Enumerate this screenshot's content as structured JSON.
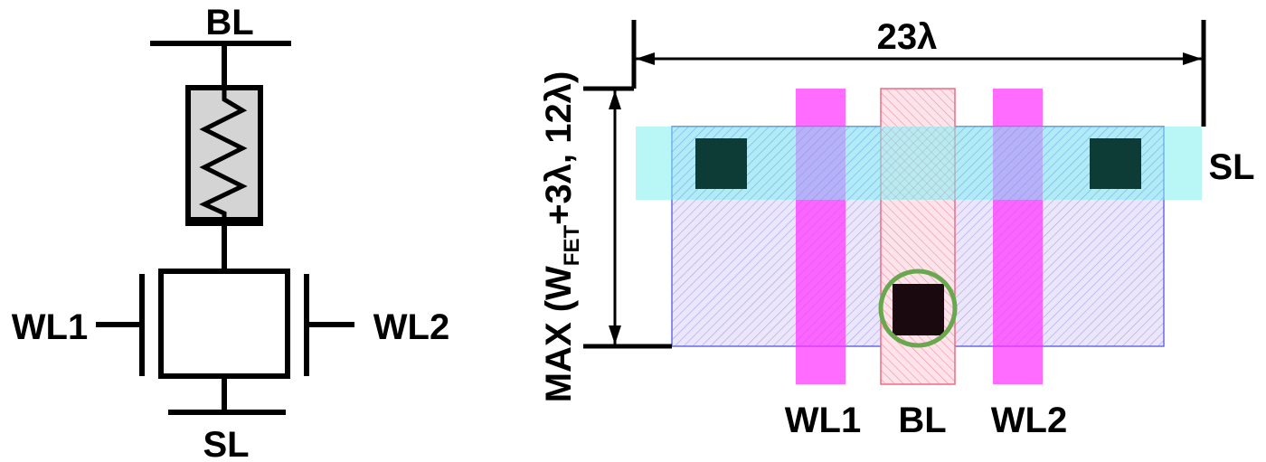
{
  "schematic": {
    "labels": {
      "bl": "BL",
      "sl": "SL",
      "wl1": "WL1",
      "wl2": "WL2"
    }
  },
  "layout": {
    "width_label": "23λ",
    "height_label": {
      "prefix": "MAX (W",
      "subscript": "FET",
      "suffix": "+3λ,  12λ)"
    },
    "labels": {
      "sl": "SL",
      "wl1": "WL1",
      "bl": "BL",
      "wl2": "WL2"
    }
  },
  "colors": {
    "resistor_fill": "#d4d4d4",
    "wordline_magenta": "#ff33ff",
    "bitline_pink": "#ff8a9e",
    "sourceline_cyan": "#7ff0f0",
    "diffusion_blue": "#5a5ae8",
    "contact_dark": "#0d3b36",
    "via_ring_green": "#6aa84f"
  }
}
